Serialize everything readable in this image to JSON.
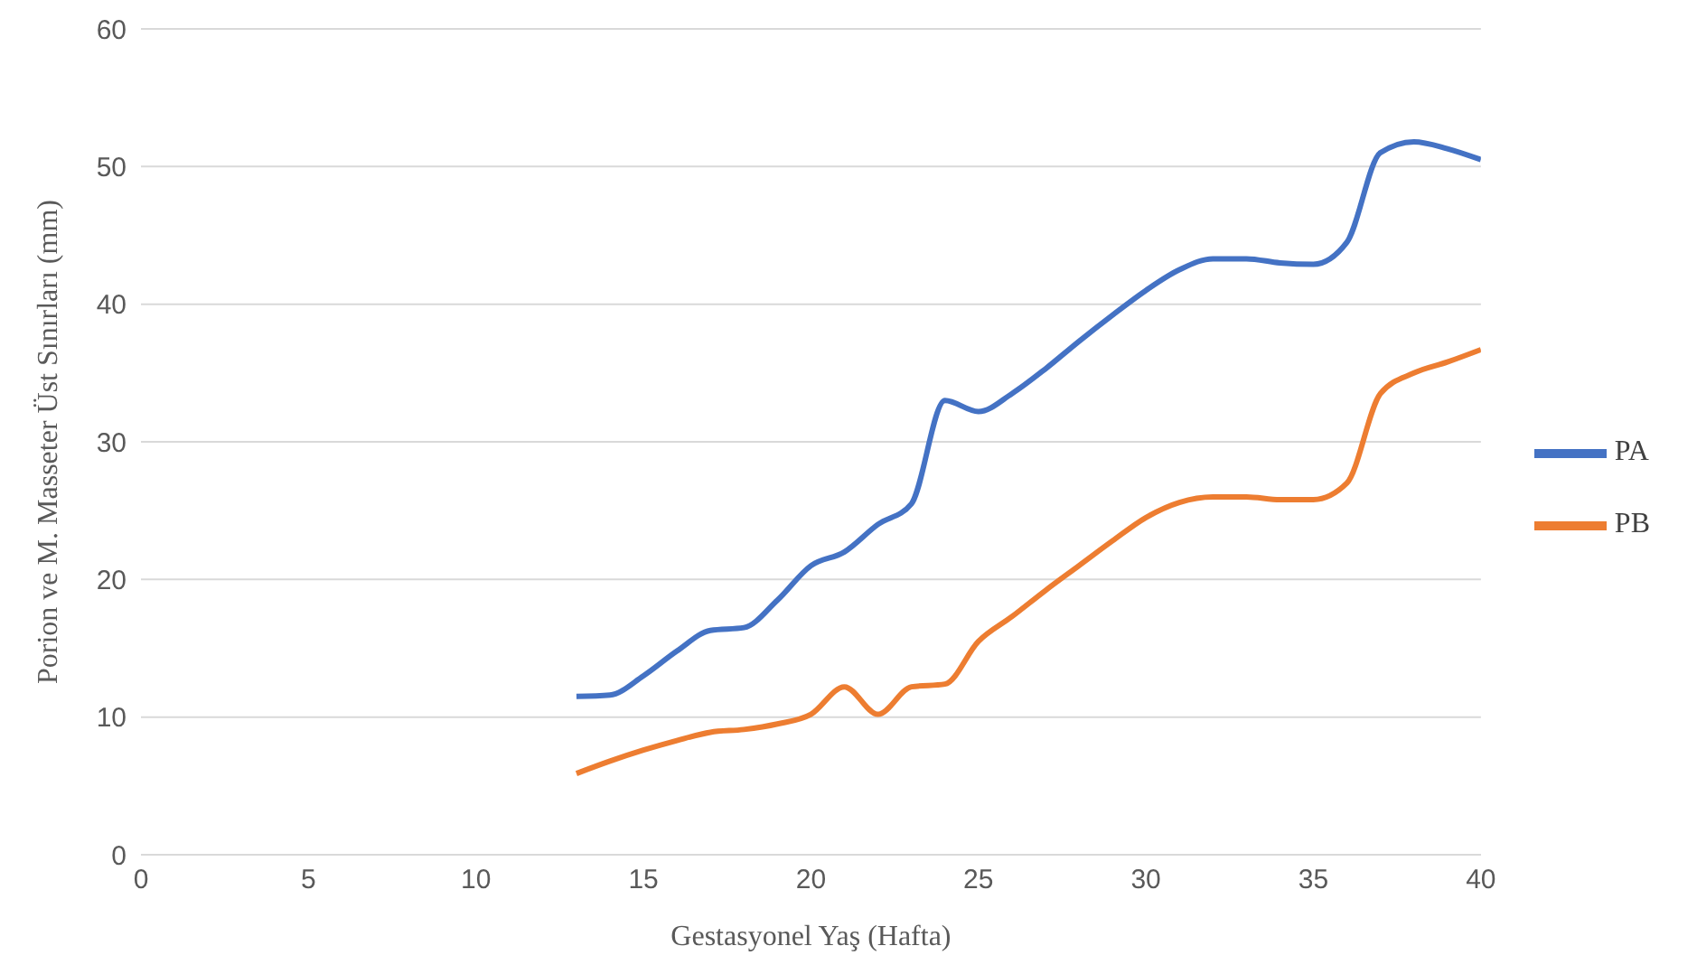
{
  "chart_data": {
    "type": "line",
    "xlabel": "Gestasyonel Yaş (Hafta)",
    "ylabel": "Porion ve M. Masseter Üst Sınırları (mm)",
    "x": [
      13,
      14,
      15,
      16,
      17,
      18,
      19,
      20,
      21,
      22,
      23,
      24,
      25,
      26,
      27,
      28,
      29,
      30,
      31,
      32,
      33,
      34,
      35,
      36,
      37,
      38,
      39,
      40
    ],
    "series": [
      {
        "name": "PA",
        "color": "#4472c4",
        "values": [
          11.5,
          11.6,
          13,
          14.8,
          16.3,
          16.5,
          18.5,
          21,
          22,
          24,
          25.5,
          33,
          32.2,
          33.5,
          35.3,
          37.3,
          39.2,
          41,
          42.5,
          43.3,
          43.3,
          43,
          42.9,
          44.5,
          51,
          51.8,
          51.3,
          50.5
        ]
      },
      {
        "name": "PB",
        "color": "#ed7d31",
        "values": [
          5.9,
          6.8,
          7.6,
          8.3,
          8.9,
          9.1,
          9.5,
          10.2,
          12.2,
          10.2,
          12.2,
          12.4,
          15.5,
          17.3,
          19.2,
          21,
          22.8,
          24.5,
          25.6,
          26,
          26,
          25.8,
          25.8,
          27,
          33.5,
          35,
          35.8,
          36.7
        ]
      }
    ],
    "xlim": [
      0,
      40
    ],
    "xticks": [
      0,
      5,
      10,
      15,
      20,
      25,
      30,
      35,
      40
    ],
    "ylim": [
      0,
      60
    ],
    "yticks": [
      0,
      10,
      20,
      30,
      40,
      50,
      60
    ],
    "grid": "y",
    "legend": "right",
    "marker": "none",
    "line_style": "solid"
  }
}
